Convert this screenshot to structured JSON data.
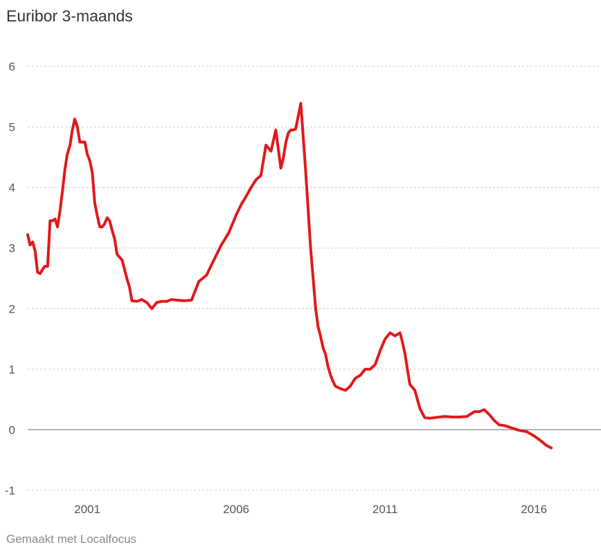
{
  "title": "Euribor 3-maands",
  "credit": "Gemaakt met Localfocus",
  "colors": {
    "line": "#e0191b",
    "grid": "#cccccc",
    "zero": "#999999"
  },
  "chart_data": {
    "type": "line",
    "title": "Euribor 3-maands",
    "xlabel": "",
    "ylabel": "",
    "xlim": [
      1999.0,
      2018.25
    ],
    "ylim": [
      -1,
      6
    ],
    "y_ticks": [
      -1,
      0,
      1,
      2,
      3,
      4,
      5,
      6
    ],
    "x_ticks": [
      2001,
      2006,
      2011,
      2016
    ],
    "y_tick_labels": [
      "-1",
      "0",
      "1",
      "2",
      "3",
      "4",
      "5",
      "6"
    ],
    "x_tick_labels": [
      "2001",
      "2006",
      "2011",
      "2016"
    ],
    "grid": true,
    "legend": "none",
    "series": [
      {
        "x": [
          1999.0,
          1999.08,
          1999.17,
          1999.25,
          1999.33,
          1999.42,
          1999.5,
          1999.58,
          1999.67,
          1999.75,
          1999.83,
          1999.92,
          2000.0,
          2000.08,
          2000.17,
          2000.25,
          2000.33,
          2000.42,
          2000.5,
          2000.58,
          2000.67,
          2000.75,
          2000.83,
          2000.92,
          2001.0,
          2001.08,
          2001.17,
          2001.25,
          2001.33,
          2001.42,
          2001.5,
          2001.58,
          2001.67,
          2001.75,
          2001.83,
          2001.92,
          2002.0,
          2002.17,
          2002.33,
          2002.42,
          2002.5,
          2002.67,
          2002.83,
          2003.0,
          2003.17,
          2003.33,
          2003.5,
          2003.67,
          2003.83,
          2004.0,
          2004.25,
          2004.5,
          2004.75,
          2005.0,
          2005.25,
          2005.5,
          2005.75,
          2005.92,
          2006.0,
          2006.17,
          2006.33,
          2006.5,
          2006.67,
          2006.83,
          2007.0,
          2007.17,
          2007.33,
          2007.5,
          2007.58,
          2007.67,
          2007.75,
          2007.83,
          2007.92,
          2008.0,
          2008.17,
          2008.33,
          2008.5,
          2008.67,
          2008.75,
          2008.83,
          2008.92,
          2009.0,
          2009.08,
          2009.17,
          2009.25,
          2009.33,
          2009.5,
          2009.67,
          2009.83,
          2010.0,
          2010.17,
          2010.33,
          2010.5,
          2010.67,
          2010.83,
          2011.0,
          2011.17,
          2011.33,
          2011.5,
          2011.58,
          2011.67,
          2011.75,
          2011.83,
          2012.0,
          2012.17,
          2012.33,
          2012.5,
          2012.67,
          2012.83,
          2013.0,
          2013.25,
          2013.5,
          2013.75,
          2014.0,
          2014.17,
          2014.33,
          2014.5,
          2014.67,
          2014.83,
          2015.0,
          2015.25,
          2015.5,
          2015.75,
          2016.0,
          2016.25,
          2016.42,
          2016.58
        ],
        "y": [
          3.22,
          3.05,
          3.1,
          2.95,
          2.6,
          2.58,
          2.65,
          2.7,
          2.7,
          3.45,
          3.45,
          3.48,
          3.35,
          3.6,
          3.95,
          4.3,
          4.55,
          4.7,
          4.95,
          5.13,
          5.0,
          4.75,
          4.75,
          4.75,
          4.55,
          4.45,
          4.25,
          3.75,
          3.55,
          3.35,
          3.35,
          3.4,
          3.5,
          3.45,
          3.3,
          3.15,
          2.9,
          2.8,
          2.5,
          2.35,
          2.13,
          2.12,
          2.15,
          2.1,
          2.0,
          2.1,
          2.12,
          2.12,
          2.15,
          2.14,
          2.13,
          2.14,
          2.45,
          2.55,
          2.8,
          3.05,
          3.25,
          3.45,
          3.55,
          3.72,
          3.85,
          4.0,
          4.13,
          4.2,
          4.7,
          4.6,
          4.95,
          4.32,
          4.48,
          4.75,
          4.9,
          4.95,
          4.95,
          4.97,
          5.39,
          4.3,
          3.0,
          2.0,
          1.7,
          1.55,
          1.35,
          1.25,
          1.05,
          0.9,
          0.8,
          0.72,
          0.68,
          0.65,
          0.72,
          0.85,
          0.9,
          1.0,
          1.0,
          1.08,
          1.3,
          1.5,
          1.6,
          1.55,
          1.6,
          1.45,
          1.25,
          1.0,
          0.75,
          0.65,
          0.35,
          0.2,
          0.19,
          0.2,
          0.21,
          0.22,
          0.21,
          0.21,
          0.22,
          0.3,
          0.3,
          0.33,
          0.25,
          0.15,
          0.08,
          0.07,
          0.03,
          -0.01,
          -0.03,
          -0.1,
          -0.19,
          -0.26,
          -0.3
        ]
      }
    ]
  }
}
